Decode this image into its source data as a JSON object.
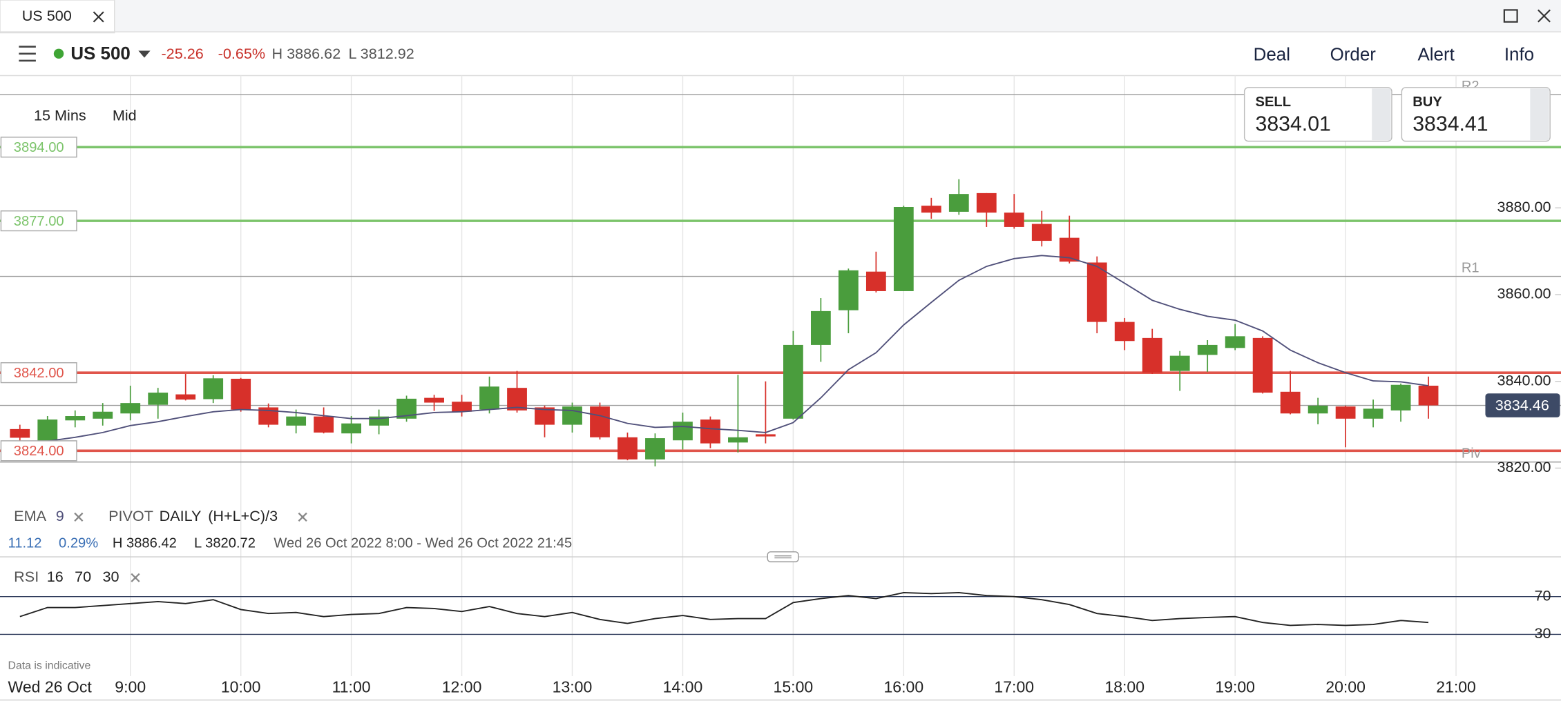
{
  "window": {
    "tab": "US 500"
  },
  "toolbar": {
    "instrument": "US 500",
    "change": "-25.26",
    "change_pct": "-0.65%",
    "high": "H 3886.62",
    "low": "L 3812.92",
    "menu": [
      "Deal",
      "Order",
      "Alert",
      "Info"
    ]
  },
  "quote": {
    "sell_label": "SELL",
    "sell": "3834.01",
    "buy_label": "BUY",
    "buy": "3834.41"
  },
  "timeframe": "15 Mins",
  "price_type": "Mid",
  "footer": {
    "note": "Data is indicative",
    "date": "Wed 26 Oct"
  },
  "chart_data": [
    {
      "type": "candlestick",
      "up_color": "#4a9d3d",
      "down_color": "#d7302a",
      "grid": true,
      "x": [
        8,
        8.25,
        8.5,
        8.75,
        9,
        9.25,
        9.5,
        9.75,
        10,
        10.25,
        10.5,
        10.75,
        11,
        11.25,
        11.5,
        11.75,
        12,
        12.25,
        12.5,
        12.75,
        13,
        13.25,
        13.5,
        13.75,
        14,
        14.25,
        14.5,
        14.75,
        15,
        15.25,
        15.5,
        15.75,
        16,
        16.25,
        16.5,
        16.75,
        17,
        17.25,
        17.5,
        17.75,
        18,
        18.25,
        18.5,
        18.75,
        19,
        19.25,
        19.5,
        19.75,
        20,
        20.25,
        20.5,
        20.75
      ],
      "open": [
        3829,
        3826.2,
        3831,
        3831.4,
        3832.6,
        3834.6,
        3837,
        3835.9,
        3840.6,
        3834,
        3829.8,
        3831.9,
        3828,
        3829.8,
        3831.4,
        3836.2,
        3835.3,
        3833.5,
        3838.5,
        3834,
        3830,
        3834.2,
        3827.1,
        3822,
        3826.4,
        3831.2,
        3825.9,
        3827.8,
        3831.4,
        3848.4,
        3856.4,
        3865.3,
        3860.8,
        3880.5,
        3879.1,
        3883.4,
        3878.9,
        3876.3,
        3873.1,
        3867.4,
        3853.7,
        3850,
        3842.4,
        3846.1,
        3847.7,
        3850,
        3837.6,
        3832.6,
        3834.2,
        3831.4,
        3833.3,
        3839
      ],
      "high": [
        3830,
        3832,
        3833.3,
        3835,
        3839,
        3838.5,
        3841.7,
        3841.4,
        3840.8,
        3834.9,
        3833.5,
        3834,
        3832,
        3833.5,
        3836.7,
        3836.9,
        3836.9,
        3841.1,
        3842.4,
        3834.4,
        3835.1,
        3835.1,
        3828.2,
        3828,
        3832.8,
        3831.9,
        3841.5,
        3840,
        3851.6,
        3859.2,
        3866,
        3869.9,
        3880.5,
        3882.3,
        3886.6,
        3883.4,
        3883.2,
        3879.3,
        3878.2,
        3868.8,
        3854.6,
        3852.1,
        3847,
        3849.5,
        3853.2,
        3850.4,
        3842.4,
        3836.2,
        3834.4,
        3835.8,
        3839.5,
        3841.1
      ],
      "low": [
        3825,
        3825.7,
        3829.4,
        3829.8,
        3831,
        3831.4,
        3835.6,
        3835,
        3833,
        3829.4,
        3828,
        3828,
        3825.7,
        3827.8,
        3830.7,
        3833.2,
        3831.9,
        3832.6,
        3832.8,
        3827.1,
        3828.2,
        3826.6,
        3821.8,
        3820.4,
        3824.3,
        3824.6,
        3823.6,
        3825.7,
        3831.2,
        3844.5,
        3851.1,
        3860.5,
        3860.8,
        3877.5,
        3878.4,
        3875.6,
        3875.2,
        3871.1,
        3867.2,
        3851.1,
        3847.2,
        3841.7,
        3837.8,
        3842.2,
        3847.2,
        3837.2,
        3832.4,
        3830.1,
        3824.8,
        3829.4,
        3830.7,
        3831.4
      ],
      "close": [
        3827,
        3831.2,
        3832,
        3833,
        3835,
        3837.4,
        3835.8,
        3840.7,
        3833.5,
        3830,
        3831.9,
        3828.2,
        3830.3,
        3831.9,
        3836,
        3835.1,
        3833,
        3838.8,
        3833.3,
        3830,
        3834.2,
        3827.1,
        3822,
        3826.9,
        3830.7,
        3825.7,
        3827.1,
        3827.3,
        3848.4,
        3856.2,
        3865.6,
        3860.8,
        3880.2,
        3878.9,
        3883.2,
        3878.9,
        3875.6,
        3872.4,
        3867.6,
        3853.7,
        3849.3,
        3842,
        3845.9,
        3848.4,
        3850.4,
        3837.4,
        3832.6,
        3834.4,
        3831.4,
        3833.7,
        3839.2,
        3834.46
      ],
      "ema": {
        "name": "EMA",
        "period": 9,
        "color": "#50507a",
        "values": [
          3825.5,
          3826.2,
          3827.1,
          3828.2,
          3829.8,
          3830.7,
          3831.9,
          3833,
          3833.5,
          3833.3,
          3832.8,
          3832.1,
          3831.4,
          3831.4,
          3832.1,
          3832.8,
          3833,
          3833.5,
          3834,
          3833.5,
          3833.3,
          3832.1,
          3830.3,
          3829.4,
          3829.6,
          3829.1,
          3828.7,
          3828.2,
          3830.5,
          3836.2,
          3842.7,
          3846.6,
          3853,
          3858.2,
          3863.3,
          3866.5,
          3868.3,
          3869,
          3868.5,
          3866.5,
          3862.6,
          3858.7,
          3856.6,
          3855,
          3854.1,
          3851.6,
          3847.2,
          3844.3,
          3842,
          3840.1,
          3839.9,
          3839
        ]
      },
      "pivot": {
        "name": "PIVOT",
        "period": "DAILY",
        "formula": "(H+L+C)/3",
        "color": "#9a9a9a",
        "levels": [
          {
            "name": "R2",
            "value": 3906.1
          },
          {
            "name": "R1",
            "value": 3864.2
          },
          {
            "name": "Piv",
            "value": 3821.4
          }
        ]
      },
      "levels": [
        {
          "value": 3894,
          "label": "3894.00",
          "color": "#7cc46b"
        },
        {
          "value": 3877,
          "label": "3877.00",
          "color": "#7cc46b"
        },
        {
          "value": 3842,
          "label": "3842.00",
          "color": "#e0554b"
        },
        {
          "value": 3824,
          "label": "3824.00",
          "color": "#e0554b"
        }
      ],
      "last": 3834.46,
      "stats": {
        "change": "11.12",
        "change_pct": "0.29%",
        "high": "H 3886.42",
        "low": "L 3820.72",
        "range": "Wed 26 Oct 2022 8:00 - Wed 26 Oct 2022 21:45"
      },
      "xlim": [
        7.82,
        21.95
      ],
      "xticks": [
        {
          "value": 9,
          "label": "9:00"
        },
        {
          "value": 10,
          "label": "10:00"
        },
        {
          "value": 11,
          "label": "11:00"
        },
        {
          "value": 12,
          "label": "12:00"
        },
        {
          "value": 13,
          "label": "13:00"
        },
        {
          "value": 14,
          "label": "14:00"
        },
        {
          "value": 15,
          "label": "15:00"
        },
        {
          "value": 16,
          "label": "16:00"
        },
        {
          "value": 17,
          "label": "17:00"
        },
        {
          "value": 18,
          "label": "18:00"
        },
        {
          "value": 19,
          "label": "19:00"
        },
        {
          "value": 20,
          "label": "20:00"
        },
        {
          "value": 21,
          "label": "21:00"
        }
      ],
      "ylim": [
        3813.3,
        3910.5
      ],
      "yticks": [
        {
          "value": 3820,
          "label": "3820.00"
        },
        {
          "value": 3840,
          "label": "3840.00"
        },
        {
          "value": 3860,
          "label": "3860.00"
        },
        {
          "value": 3880,
          "label": "3880.00"
        }
      ]
    },
    {
      "type": "line",
      "name": "RSI",
      "period": 16,
      "color": "#222222",
      "x": [
        8,
        8.25,
        8.5,
        8.75,
        9,
        9.25,
        9.5,
        9.75,
        10,
        10.25,
        10.5,
        10.75,
        11,
        11.25,
        11.5,
        11.75,
        12,
        12.25,
        12.5,
        12.75,
        13,
        13.25,
        13.5,
        13.75,
        14,
        14.25,
        14.5,
        14.75,
        15,
        15.25,
        15.5,
        15.75,
        16,
        16.25,
        16.5,
        16.75,
        17,
        17.25,
        17.5,
        17.75,
        18,
        18.25,
        18.5,
        18.75,
        19,
        19.25,
        19.5,
        19.75,
        20,
        20.25,
        20.5,
        20.75
      ],
      "values": [
        48.9,
        58.4,
        58.4,
        60.5,
        62.6,
        64.7,
        62.6,
        66.8,
        56.3,
        52.1,
        53.2,
        48.9,
        51.1,
        52.1,
        58.4,
        57.4,
        54.2,
        59.5,
        52.1,
        48.9,
        53.2,
        45.8,
        41.6,
        46.8,
        50,
        45.8,
        46.8,
        46.8,
        63.7,
        67.9,
        71.1,
        67.9,
        74.2,
        73.2,
        74.2,
        71.1,
        70,
        66.8,
        61.6,
        52.1,
        48.9,
        44.7,
        46.8,
        47.9,
        48.9,
        42.6,
        39.5,
        40.5,
        39.5,
        40.5,
        44.7,
        42.6
      ],
      "xlim": [
        7.82,
        21.95
      ],
      "ylim": [
        -14.2,
        103.7
      ],
      "yticks": [
        70,
        30
      ]
    }
  ]
}
